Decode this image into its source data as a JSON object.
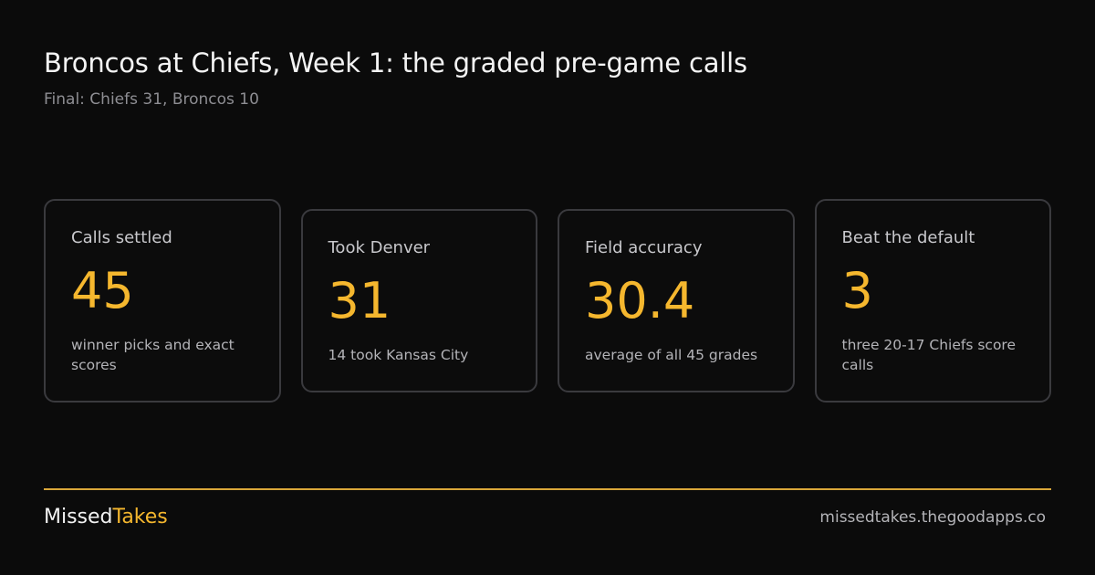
{
  "header": {
    "title": "Broncos at Chiefs, Week 1: the graded pre-game calls",
    "subtitle": "Final: Chiefs 31, Broncos 10"
  },
  "cards": [
    {
      "label": "Calls settled",
      "value": "45",
      "note": "winner picks and exact scores"
    },
    {
      "label": "Took Denver",
      "value": "31",
      "note": "14 took Kansas City"
    },
    {
      "label": "Field accuracy",
      "value": "30.4",
      "note": "average of all 45 grades"
    },
    {
      "label": "Beat the default",
      "value": "3",
      "note": "three 20-17 Chiefs score calls"
    }
  ],
  "footer": {
    "brand_first": "Missed",
    "brand_second": "Takes",
    "url": "missedtakes.thegoodapps.co"
  }
}
